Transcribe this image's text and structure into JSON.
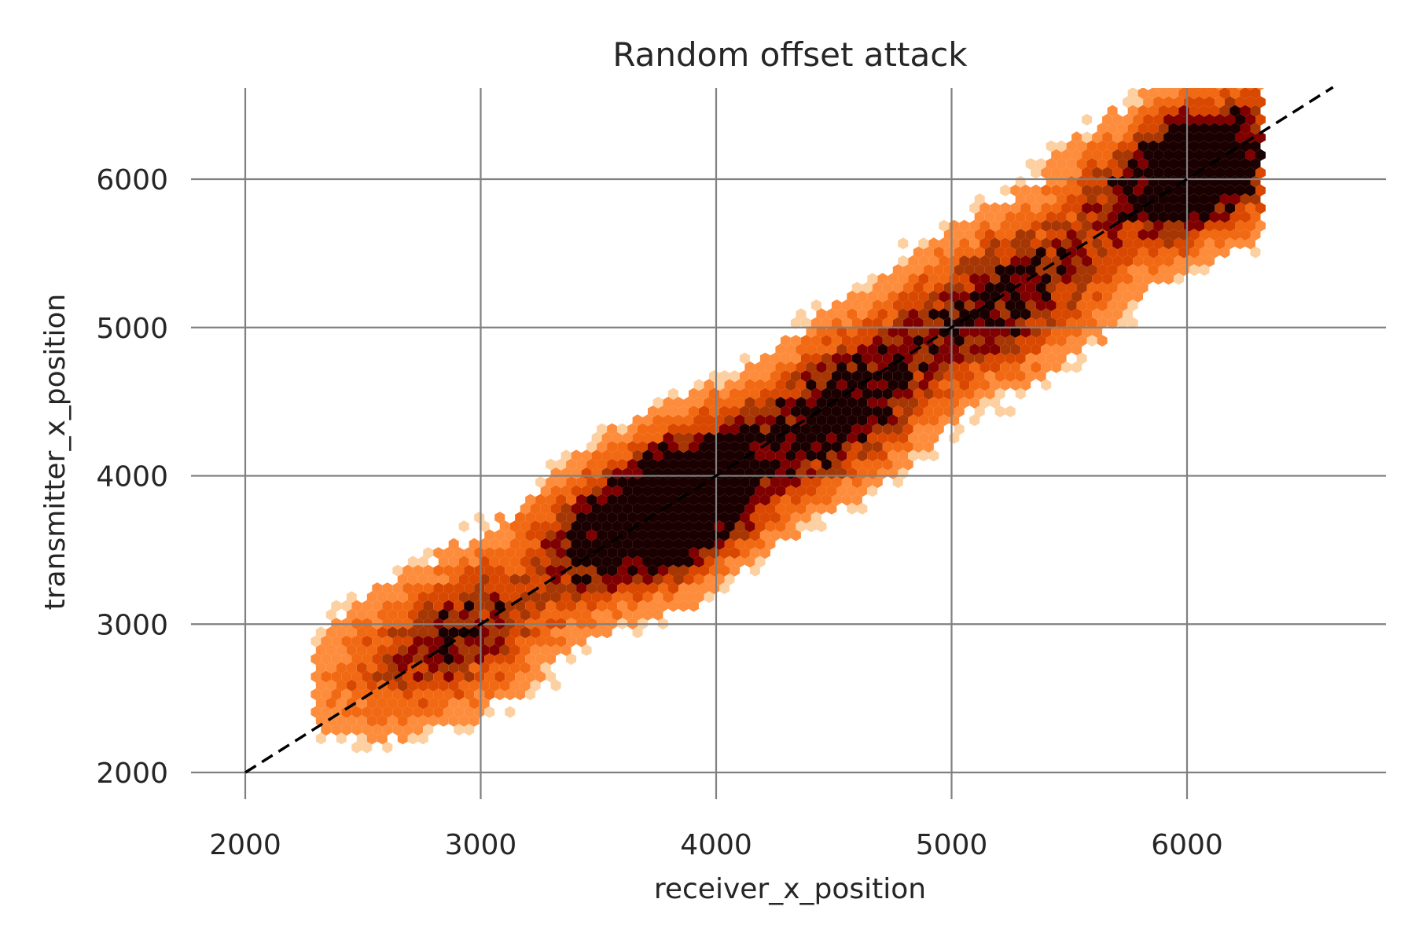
{
  "chart_data": {
    "type": "hexbin",
    "title": "Random offset attack",
    "xlabel": "receiver_x_position",
    "ylabel": "transmitter_x_position",
    "xlim": [
      1770,
      6850
    ],
    "ylim": [
      1780,
      6620
    ],
    "x_ticks": [
      2000,
      3000,
      4000,
      5000,
      6000
    ],
    "y_ticks": [
      2000,
      3000,
      4000,
      5000,
      6000
    ],
    "x_tick_labels": [
      "2000",
      "3000",
      "4000",
      "5000",
      "6000"
    ],
    "y_tick_labels": [
      "2000",
      "3000",
      "4000",
      "5000",
      "6000"
    ],
    "grid": true,
    "colormap": [
      "#fff5eb",
      "#fdd0a2",
      "#fd8d3c",
      "#f16913",
      "#d94801",
      "#a63603",
      "#7f0000",
      "#1a0000"
    ],
    "reference_line": {
      "label": "y = x",
      "style": "dashed",
      "color": "#000000",
      "x": [
        2000,
        6620
      ],
      "y": [
        2000,
        6620
      ]
    },
    "density_clusters": [
      {
        "x_center": 2740,
        "y_center": 2850,
        "x_spread": 350,
        "y_spread": 420,
        "weight": 0.55
      },
      {
        "x_center": 3000,
        "y_center": 3050,
        "x_spread": 260,
        "y_spread": 400,
        "weight": 0.35
      },
      {
        "x_center": 3600,
        "y_center": 3650,
        "x_spread": 280,
        "y_spread": 380,
        "weight": 1.0
      },
      {
        "x_center": 3830,
        "y_center": 3800,
        "x_spread": 220,
        "y_spread": 380,
        "weight": 0.75
      },
      {
        "x_center": 4000,
        "y_center": 3950,
        "x_spread": 240,
        "y_spread": 380,
        "weight": 0.7
      },
      {
        "x_center": 4430,
        "y_center": 4300,
        "x_spread": 250,
        "y_spread": 420,
        "weight": 0.65
      },
      {
        "x_center": 4620,
        "y_center": 4450,
        "x_spread": 200,
        "y_spread": 420,
        "weight": 0.6
      },
      {
        "x_center": 5050,
        "y_center": 5000,
        "x_spread": 300,
        "y_spread": 450,
        "weight": 0.55
      },
      {
        "x_center": 5350,
        "y_center": 5250,
        "x_spread": 280,
        "y_spread": 420,
        "weight": 0.6
      },
      {
        "x_center": 5850,
        "y_center": 6050,
        "x_spread": 300,
        "y_spread": 380,
        "weight": 0.75
      },
      {
        "x_center": 6100,
        "y_center": 6100,
        "x_spread": 220,
        "y_spread": 380,
        "weight": 1.0
      }
    ],
    "x_data_range": [
      2300,
      6330
    ],
    "y_data_range": [
      2050,
      6620
    ]
  }
}
